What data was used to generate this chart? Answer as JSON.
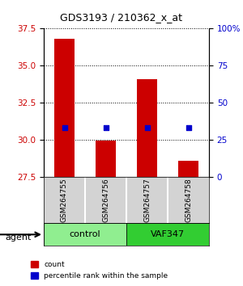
{
  "title": "GDS3193 / 210362_x_at",
  "samples": [
    "GSM264755",
    "GSM264756",
    "GSM264757",
    "GSM264758"
  ],
  "groups": [
    "control",
    "control",
    "VAF347",
    "VAF347"
  ],
  "group_colors": [
    "#90EE90",
    "#90EE90",
    "#32CD32",
    "#32CD32"
  ],
  "bar_values": [
    36.8,
    29.95,
    34.1,
    28.6
  ],
  "bar_base": 27.5,
  "percentile_values": [
    33.4,
    33.2,
    33.5,
    33.2
  ],
  "ylim_left": [
    27.5,
    37.5
  ],
  "yticks_left": [
    27.5,
    30.0,
    32.5,
    35.0,
    37.5
  ],
  "yticks_right": [
    0,
    25,
    50,
    75,
    100
  ],
  "bar_color": "#CC0000",
  "pct_color": "#0000CC",
  "bg_color": "#ffffff",
  "plot_bg": "#ffffff",
  "grid_color": "#000000",
  "label_count": "count",
  "label_pct": "percentile rank within the sample",
  "xlabel_rotation": 90,
  "agent_label": "agent"
}
